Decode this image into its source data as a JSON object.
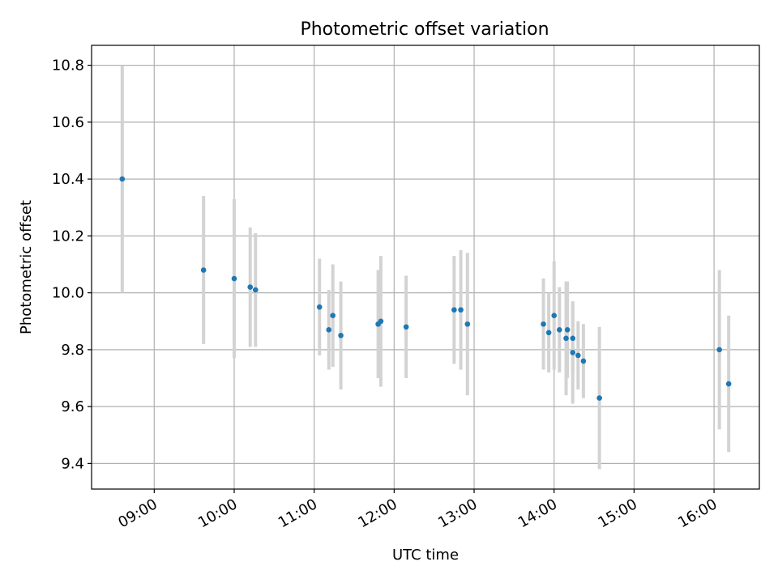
{
  "chart_data": {
    "type": "scatter",
    "title": "Photometric offset variation",
    "xlabel": "UTC time",
    "ylabel": "Photometric offset",
    "xlim": [
      "08:13",
      "16:34"
    ],
    "ylim": [
      9.31,
      10.87
    ],
    "x_ticks": [
      "09:00",
      "10:00",
      "11:00",
      "12:00",
      "13:00",
      "14:00",
      "15:00",
      "16:00"
    ],
    "y_ticks": [
      "9.4",
      "9.6",
      "9.8",
      "10.0",
      "10.2",
      "10.4",
      "10.6",
      "10.8"
    ],
    "grid": true,
    "legend": "none",
    "colors": {
      "marker": "#1f77b4",
      "errorbar": "#d3d3d3",
      "grid": "#b0b0b0"
    },
    "series": [
      {
        "points": [
          {
            "x": "08:36",
            "y": 10.4,
            "err": 0.4
          },
          {
            "x": "09:37",
            "y": 10.08,
            "err": 0.26
          },
          {
            "x": "10:00",
            "y": 10.05,
            "err": 0.28
          },
          {
            "x": "10:12",
            "y": 10.02,
            "err": 0.21
          },
          {
            "x": "10:16",
            "y": 10.01,
            "err": 0.2
          },
          {
            "x": "11:04",
            "y": 9.95,
            "err": 0.17
          },
          {
            "x": "11:11",
            "y": 9.87,
            "err": 0.14
          },
          {
            "x": "11:14",
            "y": 9.92,
            "err": 0.18
          },
          {
            "x": "11:20",
            "y": 9.85,
            "err": 0.19
          },
          {
            "x": "11:48",
            "y": 9.89,
            "err": 0.19
          },
          {
            "x": "11:50",
            "y": 9.9,
            "err": 0.23
          },
          {
            "x": "12:09",
            "y": 9.88,
            "err": 0.18
          },
          {
            "x": "12:45",
            "y": 9.94,
            "err": 0.19
          },
          {
            "x": "12:50",
            "y": 9.94,
            "err": 0.21
          },
          {
            "x": "12:55",
            "y": 9.89,
            "err": 0.25
          },
          {
            "x": "13:52",
            "y": 9.89,
            "err": 0.16
          },
          {
            "x": "13:56",
            "y": 9.86,
            "err": 0.14
          },
          {
            "x": "14:00",
            "y": 9.92,
            "err": 0.19
          },
          {
            "x": "14:04",
            "y": 9.87,
            "err": 0.15
          },
          {
            "x": "14:09",
            "y": 9.84,
            "err": 0.2
          },
          {
            "x": "14:10",
            "y": 9.87,
            "err": 0.17
          },
          {
            "x": "14:14",
            "y": 9.84,
            "err": 0.12
          },
          {
            "x": "14:14",
            "y": 9.79,
            "err": 0.18
          },
          {
            "x": "14:18",
            "y": 9.78,
            "err": 0.12
          },
          {
            "x": "14:22",
            "y": 9.76,
            "err": 0.13
          },
          {
            "x": "14:34",
            "y": 9.63,
            "err": 0.25
          },
          {
            "x": "16:04",
            "y": 9.8,
            "err": 0.28
          },
          {
            "x": "16:11",
            "y": 9.68,
            "err": 0.24
          }
        ]
      }
    ]
  }
}
